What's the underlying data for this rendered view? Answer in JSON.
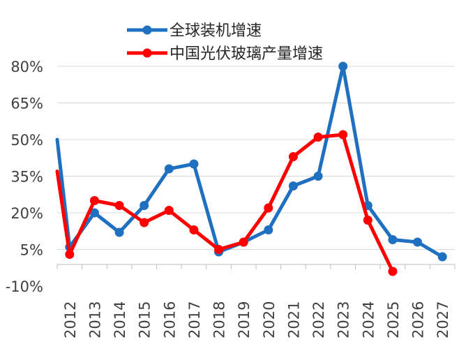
{
  "chart_data": {
    "type": "line",
    "title": "",
    "xlabel": "",
    "ylabel": "",
    "ylim": [
      -10,
      85
    ],
    "yticks": [
      -10,
      5,
      20,
      35,
      50,
      65,
      80
    ],
    "ytick_labels": [
      "-10%",
      "5%",
      "20%",
      "35%",
      "50%",
      "65%",
      "80%"
    ],
    "grid": true,
    "legend_position": "top-center",
    "categories": [
      "2012",
      "2013",
      "2014",
      "2015",
      "2016",
      "2017",
      "2018",
      "2019",
      "2020",
      "2021",
      "2022",
      "2023",
      "2024",
      "2025",
      "2026",
      "2027"
    ],
    "series": [
      {
        "name": "全球装机增速",
        "color": "#1f70c1",
        "start_value": 50,
        "values": [
          6,
          20,
          12,
          23,
          38,
          40,
          4,
          8,
          13,
          31,
          35,
          80,
          23,
          9,
          8,
          2
        ]
      },
      {
        "name": "中国光伏玻璃产量增速",
        "color": "#ff0000",
        "start_value": 37,
        "values": [
          3,
          25,
          23,
          16,
          21,
          13,
          5,
          8,
          22,
          43,
          51,
          52,
          17,
          null,
          null,
          null
        ],
        "tail_value": -4
      }
    ]
  }
}
